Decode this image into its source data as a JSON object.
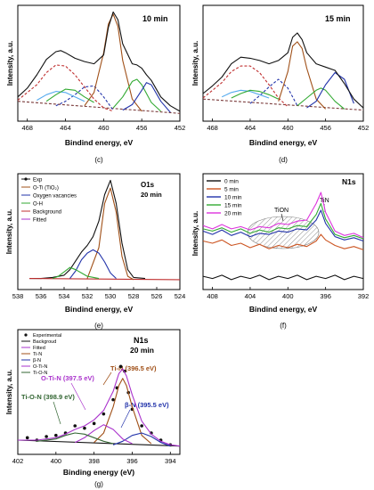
{
  "colors": {
    "exp": "#111111",
    "fitted": "#111111",
    "background": "#7a3a3a",
    "red": "#c03030",
    "brown": "#a05018",
    "green": "#33aa33",
    "blue": "#2233aa",
    "purple": "#aa33cc",
    "darkgreen": "#336633",
    "lightblue": "#55aaee",
    "magenta": "#dd33dd",
    "orange": "#cc5522"
  },
  "chart_data": [
    {
      "id": "c",
      "type": "line",
      "panel_label": "(c)",
      "annotation": "10 min",
      "xlabel": "Bindind energy, eV",
      "ylabel": "Intensity, a.u.",
      "xlim": [
        469,
        452
      ],
      "ylim": [
        0,
        1.05
      ],
      "xticks": [
        "468",
        "464",
        "460",
        "456",
        "452"
      ],
      "series": [
        {
          "color": "#7a3a3a",
          "dash": "3,2",
          "x": [
            469,
            452
          ],
          "y": [
            0.18,
            0.07
          ]
        },
        {
          "color": "#c03030",
          "dash": "3,2",
          "x": [
            469,
            467,
            466,
            465,
            464,
            463,
            462,
            461,
            460,
            459
          ],
          "y": [
            0.19,
            0.33,
            0.44,
            0.51,
            0.5,
            0.42,
            0.31,
            0.2,
            0.12,
            0.09
          ]
        },
        {
          "color": "#2233aa",
          "dash": "3,2",
          "x": [
            465,
            464,
            463,
            462,
            461,
            460,
            459
          ],
          "y": [
            0.14,
            0.18,
            0.24,
            0.31,
            0.32,
            0.22,
            0.1
          ]
        },
        {
          "color": "#a05018",
          "x": [
            462,
            461,
            460,
            459.5,
            459,
            458.5,
            458,
            457,
            456
          ],
          "y": [
            0.14,
            0.26,
            0.62,
            0.88,
            0.97,
            0.86,
            0.55,
            0.2,
            0.09
          ]
        },
        {
          "color": "#33aa33",
          "x": [
            459,
            458,
            457,
            456.5,
            456,
            455,
            454
          ],
          "y": [
            0.12,
            0.22,
            0.36,
            0.38,
            0.33,
            0.17,
            0.09
          ]
        },
        {
          "color": "#2233aa",
          "x": [
            458,
            457,
            456,
            455.5,
            455,
            454,
            453
          ],
          "y": [
            0.1,
            0.15,
            0.28,
            0.35,
            0.33,
            0.18,
            0.08
          ]
        },
        {
          "color": "#55aaee",
          "x": [
            467,
            466,
            465,
            464,
            463,
            462
          ],
          "y": [
            0.19,
            0.24,
            0.27,
            0.26,
            0.22,
            0.18
          ]
        },
        {
          "color": "#33aa33",
          "x": [
            466,
            465,
            464,
            463,
            462,
            461
          ],
          "y": [
            0.18,
            0.24,
            0.29,
            0.28,
            0.22,
            0.17
          ]
        },
        {
          "color": "#111111",
          "x": [
            469,
            468,
            467,
            466,
            465,
            464.5,
            464,
            463,
            462,
            461,
            460,
            459.5,
            459,
            458.5,
            458,
            457,
            456.5,
            456,
            455.5,
            455,
            454,
            453,
            452
          ],
          "y": [
            0.22,
            0.3,
            0.42,
            0.56,
            0.63,
            0.64,
            0.62,
            0.57,
            0.54,
            0.52,
            0.6,
            0.85,
            0.99,
            0.92,
            0.7,
            0.52,
            0.51,
            0.48,
            0.42,
            0.37,
            0.22,
            0.14,
            0.09
          ]
        }
      ]
    },
    {
      "id": "d",
      "type": "line",
      "panel_label": "(d)",
      "annotation": "15 min",
      "xlabel": "Bindind energy, eV",
      "ylabel": "Intensity, a.u.",
      "xlim": [
        469,
        452
      ],
      "ylim": [
        0,
        1.05
      ],
      "xticks": [
        "468",
        "464",
        "460",
        "456",
        "452"
      ],
      "series": [
        {
          "color": "#7a3a3a",
          "dash": "3,2",
          "x": [
            469,
            452
          ],
          "y": [
            0.2,
            0.1
          ]
        },
        {
          "color": "#c03030",
          "dash": "3,2",
          "x": [
            469,
            467,
            466,
            465,
            464,
            463,
            462,
            461,
            460
          ],
          "y": [
            0.21,
            0.35,
            0.45,
            0.5,
            0.5,
            0.44,
            0.33,
            0.21,
            0.13
          ]
        },
        {
          "color": "#2233aa",
          "dash": "3,2",
          "x": [
            464,
            463,
            462,
            461,
            460,
            459
          ],
          "y": [
            0.16,
            0.23,
            0.31,
            0.38,
            0.3,
            0.14
          ]
        },
        {
          "color": "#a05018",
          "x": [
            461,
            460,
            459.5,
            459,
            458.5,
            458,
            457,
            456
          ],
          "y": [
            0.18,
            0.45,
            0.68,
            0.72,
            0.66,
            0.48,
            0.2,
            0.11
          ]
        },
        {
          "color": "#33aa33",
          "x": [
            459,
            458,
            457,
            456.5,
            456,
            455,
            454
          ],
          "y": [
            0.14,
            0.21,
            0.28,
            0.3,
            0.28,
            0.18,
            0.11
          ]
        },
        {
          "color": "#2233aa",
          "x": [
            458,
            457,
            456,
            455,
            454,
            453
          ],
          "y": [
            0.12,
            0.18,
            0.33,
            0.44,
            0.38,
            0.16
          ]
        },
        {
          "color": "#55aaee",
          "x": [
            467,
            466,
            465,
            464,
            463,
            462
          ],
          "y": [
            0.22,
            0.26,
            0.28,
            0.27,
            0.24,
            0.21
          ]
        },
        {
          "color": "#33aa33",
          "x": [
            466,
            465,
            464,
            463,
            462,
            461
          ],
          "y": [
            0.21,
            0.25,
            0.28,
            0.27,
            0.24,
            0.2
          ]
        },
        {
          "color": "#111111",
          "x": [
            469,
            468,
            467,
            466,
            465,
            464,
            463,
            462,
            461,
            460,
            459.5,
            459,
            458.5,
            458,
            457,
            456,
            455,
            454,
            453,
            452
          ],
          "y": [
            0.25,
            0.32,
            0.4,
            0.52,
            0.58,
            0.57,
            0.55,
            0.52,
            0.55,
            0.62,
            0.76,
            0.8,
            0.74,
            0.62,
            0.52,
            0.49,
            0.46,
            0.34,
            0.2,
            0.12
          ]
        }
      ]
    },
    {
      "id": "e",
      "type": "line",
      "panel_label": "(e)",
      "annotation": "O1s",
      "annotation2": "20 min",
      "xlabel": "Bindind energy, eV",
      "ylabel": "Intensity, a.u.",
      "xlim": [
        538,
        524
      ],
      "ylim": [
        0,
        1.05
      ],
      "xticks": [
        "538",
        "536",
        "534",
        "532",
        "530",
        "528",
        "526",
        "524"
      ],
      "legend": [
        "Exp",
        "O-Ti (TiO₂)",
        "Oxygen vacancies",
        "O-H",
        "Background",
        "Fitted"
      ],
      "series": [
        {
          "color": "#111111",
          "x": [
            537,
            536,
            535,
            534,
            533.5,
            533,
            532.5,
            532,
            531.5,
            531,
            530.5,
            530,
            529.5,
            529,
            528.5,
            528,
            527
          ],
          "y": [
            0.1,
            0.1,
            0.11,
            0.13,
            0.18,
            0.26,
            0.34,
            0.4,
            0.48,
            0.62,
            0.86,
            0.99,
            0.78,
            0.42,
            0.18,
            0.11,
            0.1
          ]
        },
        {
          "color": "#c03030",
          "x": [
            537,
            524
          ],
          "y": [
            0.1,
            0.09
          ]
        },
        {
          "color": "#a05018",
          "x": [
            532,
            531,
            530.5,
            530,
            529.5,
            529,
            528.5,
            528
          ],
          "y": [
            0.1,
            0.38,
            0.78,
            0.92,
            0.7,
            0.3,
            0.12,
            0.09
          ]
        },
        {
          "color": "#2233aa",
          "x": [
            533.5,
            533,
            532.5,
            532,
            531.5,
            531,
            530.5,
            530,
            529.5
          ],
          "y": [
            0.1,
            0.17,
            0.27,
            0.33,
            0.36,
            0.33,
            0.25,
            0.15,
            0.1
          ]
        },
        {
          "color": "#33aa33",
          "x": [
            535,
            534.5,
            534,
            533.5,
            533,
            532.5,
            532,
            531
          ],
          "y": [
            0.1,
            0.12,
            0.16,
            0.2,
            0.18,
            0.15,
            0.12,
            0.1
          ]
        }
      ]
    },
    {
      "id": "f",
      "type": "line",
      "panel_label": "(f)",
      "annotation": "N1s",
      "xlabel": "Bindind energy, eV",
      "ylabel": "Intensity, a.u.",
      "xlim": [
        409,
        392
      ],
      "ylim": [
        0,
        1.05
      ],
      "xticks": [
        "408",
        "404",
        "400",
        "396",
        "392"
      ],
      "peak_labels": [
        "TiN",
        "TiON"
      ],
      "legend": [
        "0 min",
        "5 min",
        "10 min",
        "15 min",
        "20 min"
      ],
      "series": [
        {
          "name": "0 min",
          "color": "#111111",
          "x": [
            409,
            408,
            407,
            406,
            405,
            404,
            403,
            402,
            401,
            400,
            399,
            398,
            397,
            396,
            395,
            394,
            393,
            392
          ],
          "y": [
            0.12,
            0.1,
            0.13,
            0.09,
            0.12,
            0.1,
            0.13,
            0.09,
            0.12,
            0.1,
            0.13,
            0.09,
            0.12,
            0.1,
            0.13,
            0.09,
            0.12,
            0.1
          ]
        },
        {
          "name": "5 min",
          "color": "#cc5522",
          "x": [
            409,
            408,
            407,
            406,
            405,
            404,
            403,
            402,
            401,
            400,
            399,
            398,
            397,
            396.5,
            396,
            395,
            394,
            393,
            392
          ],
          "y": [
            0.44,
            0.42,
            0.45,
            0.4,
            0.42,
            0.38,
            0.41,
            0.37,
            0.4,
            0.38,
            0.41,
            0.39,
            0.44,
            0.5,
            0.45,
            0.4,
            0.37,
            0.39,
            0.36
          ]
        },
        {
          "name": "10 min",
          "color": "#2233aa",
          "x": [
            409,
            408,
            407,
            406,
            405,
            404,
            403,
            402,
            401,
            400,
            399,
            398,
            397,
            396.5,
            396,
            395,
            394,
            393,
            392
          ],
          "y": [
            0.53,
            0.5,
            0.54,
            0.49,
            0.52,
            0.48,
            0.51,
            0.5,
            0.53,
            0.52,
            0.55,
            0.54,
            0.63,
            0.72,
            0.6,
            0.48,
            0.45,
            0.47,
            0.44
          ]
        },
        {
          "name": "15 min",
          "color": "#33aa33",
          "x": [
            409,
            408,
            407,
            406,
            405,
            404,
            403,
            402,
            401,
            400,
            399,
            398,
            397,
            396.5,
            396,
            395,
            394,
            393,
            392
          ],
          "y": [
            0.55,
            0.53,
            0.56,
            0.52,
            0.55,
            0.51,
            0.54,
            0.52,
            0.56,
            0.55,
            0.58,
            0.57,
            0.68,
            0.78,
            0.64,
            0.5,
            0.47,
            0.49,
            0.46
          ]
        },
        {
          "name": "20 min",
          "color": "#dd33dd",
          "x": [
            409,
            408,
            407,
            406,
            405,
            404,
            403,
            402,
            401,
            400,
            399,
            398,
            397,
            396.5,
            396,
            395,
            394,
            393,
            392
          ],
          "y": [
            0.58,
            0.55,
            0.59,
            0.55,
            0.57,
            0.54,
            0.57,
            0.56,
            0.6,
            0.59,
            0.62,
            0.63,
            0.78,
            0.88,
            0.7,
            0.53,
            0.49,
            0.51,
            0.47
          ]
        }
      ]
    },
    {
      "id": "g",
      "type": "line",
      "panel_label": "(g)",
      "annotation": "N1s",
      "annotation2": "20 min",
      "xlabel": "Binding energy (eV)",
      "ylabel": "Intensity, a.u.",
      "xlim": [
        402,
        393.5
      ],
      "ylim": [
        0,
        1.05
      ],
      "xticks": [
        "402",
        "400",
        "398",
        "396",
        "394"
      ],
      "legend": [
        "Experimental",
        "Backgroud",
        "Fitted",
        "Ti-N",
        "β-N",
        "O-Ti-N",
        "Ti-O-N"
      ],
      "peak_labels": [
        "Ti-N (396.5 eV)",
        "O-Ti-N (397.5 eV)",
        "Ti-O-N (398.9 eV)",
        "β-N (395.5 eV)"
      ],
      "series": [
        {
          "name": "Experimental",
          "color": "#111111",
          "points": true,
          "x": [
            401.5,
            401,
            400.5,
            400,
            399.5,
            399,
            398.5,
            398,
            397.5,
            397,
            396.8,
            396.6,
            396.4,
            396.2,
            396,
            395.5,
            395,
            394.5,
            394
          ],
          "y": [
            0.14,
            0.12,
            0.15,
            0.16,
            0.18,
            0.24,
            0.22,
            0.26,
            0.34,
            0.46,
            0.56,
            0.74,
            0.7,
            0.52,
            0.38,
            0.24,
            0.18,
            0.12,
            0.08
          ]
        },
        {
          "name": "Backgroud",
          "color": "#111111",
          "x": [
            402,
            393.5
          ],
          "y": [
            0.12,
            0.07
          ]
        },
        {
          "name": "Fitted",
          "color": "#aa33cc",
          "x": [
            402,
            401,
            400,
            399.5,
            399,
            398.5,
            398,
            397.5,
            397,
            396.7,
            396.5,
            396.3,
            396,
            395.5,
            395,
            394.5,
            394,
            393.5
          ],
          "y": [
            0.12,
            0.12,
            0.14,
            0.17,
            0.21,
            0.24,
            0.29,
            0.37,
            0.53,
            0.68,
            0.72,
            0.66,
            0.5,
            0.28,
            0.17,
            0.11,
            0.08,
            0.07
          ]
        },
        {
          "name": "Ti-N",
          "color": "#a05018",
          "x": [
            398,
            397.5,
            397,
            396.7,
            396.5,
            396.3,
            396,
            395.5,
            395
          ],
          "y": [
            0.1,
            0.18,
            0.4,
            0.58,
            0.64,
            0.58,
            0.4,
            0.16,
            0.09
          ]
        },
        {
          "name": "β-N",
          "color": "#2233aa",
          "x": [
            397,
            396.5,
            396,
            395.5,
            395,
            394.5,
            394
          ],
          "y": [
            0.08,
            0.11,
            0.16,
            0.18,
            0.15,
            0.1,
            0.07
          ]
        },
        {
          "name": "O-Ti-N",
          "color": "#aa33cc",
          "x": [
            399,
            398.5,
            398,
            397.5,
            397,
            396.5,
            396
          ],
          "y": [
            0.1,
            0.14,
            0.2,
            0.25,
            0.21,
            0.13,
            0.09
          ]
        },
        {
          "name": "Ti-O-N",
          "color": "#336633",
          "x": [
            401,
            400,
            399.5,
            399,
            398.5,
            398,
            397.5,
            397
          ],
          "y": [
            0.11,
            0.13,
            0.16,
            0.18,
            0.17,
            0.14,
            0.11,
            0.09
          ]
        }
      ]
    }
  ]
}
